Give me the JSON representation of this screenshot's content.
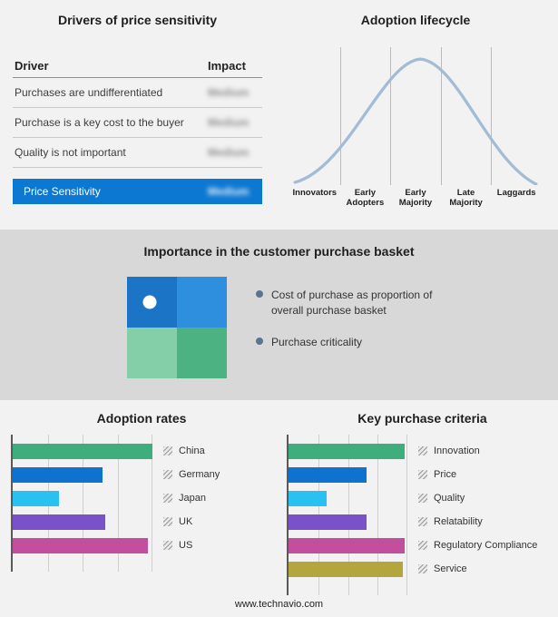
{
  "panels": {
    "drivers": {
      "title": "Drivers of price sensitivity",
      "col_driver": "Driver",
      "col_impact": "Impact",
      "rows": [
        {
          "driver": "Purchases are undifferentiated",
          "impact": "Medium"
        },
        {
          "driver": "Purchase is a key cost to the buyer",
          "impact": "Medium"
        },
        {
          "driver": "Quality is not important",
          "impact": "Medium"
        }
      ],
      "highlight": {
        "driver": "Price Sensitivity",
        "impact": "Medium"
      },
      "highlight_color": "#0d78d2",
      "impact_values_blurred": true
    },
    "basket": {
      "title": "Importance in the customer purchase basket",
      "quadrant_colors": [
        "#1b74c5",
        "#2f8fdf",
        "#84cfa7",
        "#4db281"
      ],
      "dot_color": "#ffffff",
      "bullet_color": "#5a7590",
      "legend": [
        "Cost of purchase as proportion of overall purchase basket",
        "Purchase criticality"
      ]
    }
  },
  "chart_data": [
    {
      "type": "line",
      "title": "Adoption lifecycle",
      "x": [
        "Innovators",
        "Early Adopters",
        "Early Majority",
        "Late Majority",
        "Laggards"
      ],
      "values": [
        8,
        55,
        100,
        55,
        8
      ],
      "curve": "bell-shaped adoption curve, y-axis unlabeled",
      "curve_color": "#a3bcd6",
      "grid": "vertical separators between the five stages"
    },
    {
      "type": "bar",
      "orientation": "horizontal",
      "title": "Adoption rates",
      "categories": [
        "China",
        "Germany",
        "Japan",
        "UK",
        "US"
      ],
      "values": [
        100,
        64,
        33,
        66,
        97
      ],
      "colors": [
        "#3fae7c",
        "#0f72ce",
        "#29c1f2",
        "#7a52c7",
        "#c24f9e"
      ],
      "xlim": [
        0,
        100
      ],
      "x_axis": "hidden (relative scale, gridlines every 25%)"
    },
    {
      "type": "bar",
      "orientation": "horizontal",
      "title": "Key purchase criteria",
      "categories": [
        "Innovation",
        "Price",
        "Quality",
        "Relatability",
        "Regulatory Compliance",
        "Service"
      ],
      "values": [
        98,
        66,
        32,
        66,
        98,
        96
      ],
      "colors": [
        "#3fae7c",
        "#0f72ce",
        "#29c1f2",
        "#7a52c7",
        "#c24f9e",
        "#b3a63f"
      ],
      "xlim": [
        0,
        100
      ],
      "x_axis": "hidden (relative scale, gridlines every 25%)"
    }
  ],
  "footer": {
    "url": "www.technavio.com"
  }
}
